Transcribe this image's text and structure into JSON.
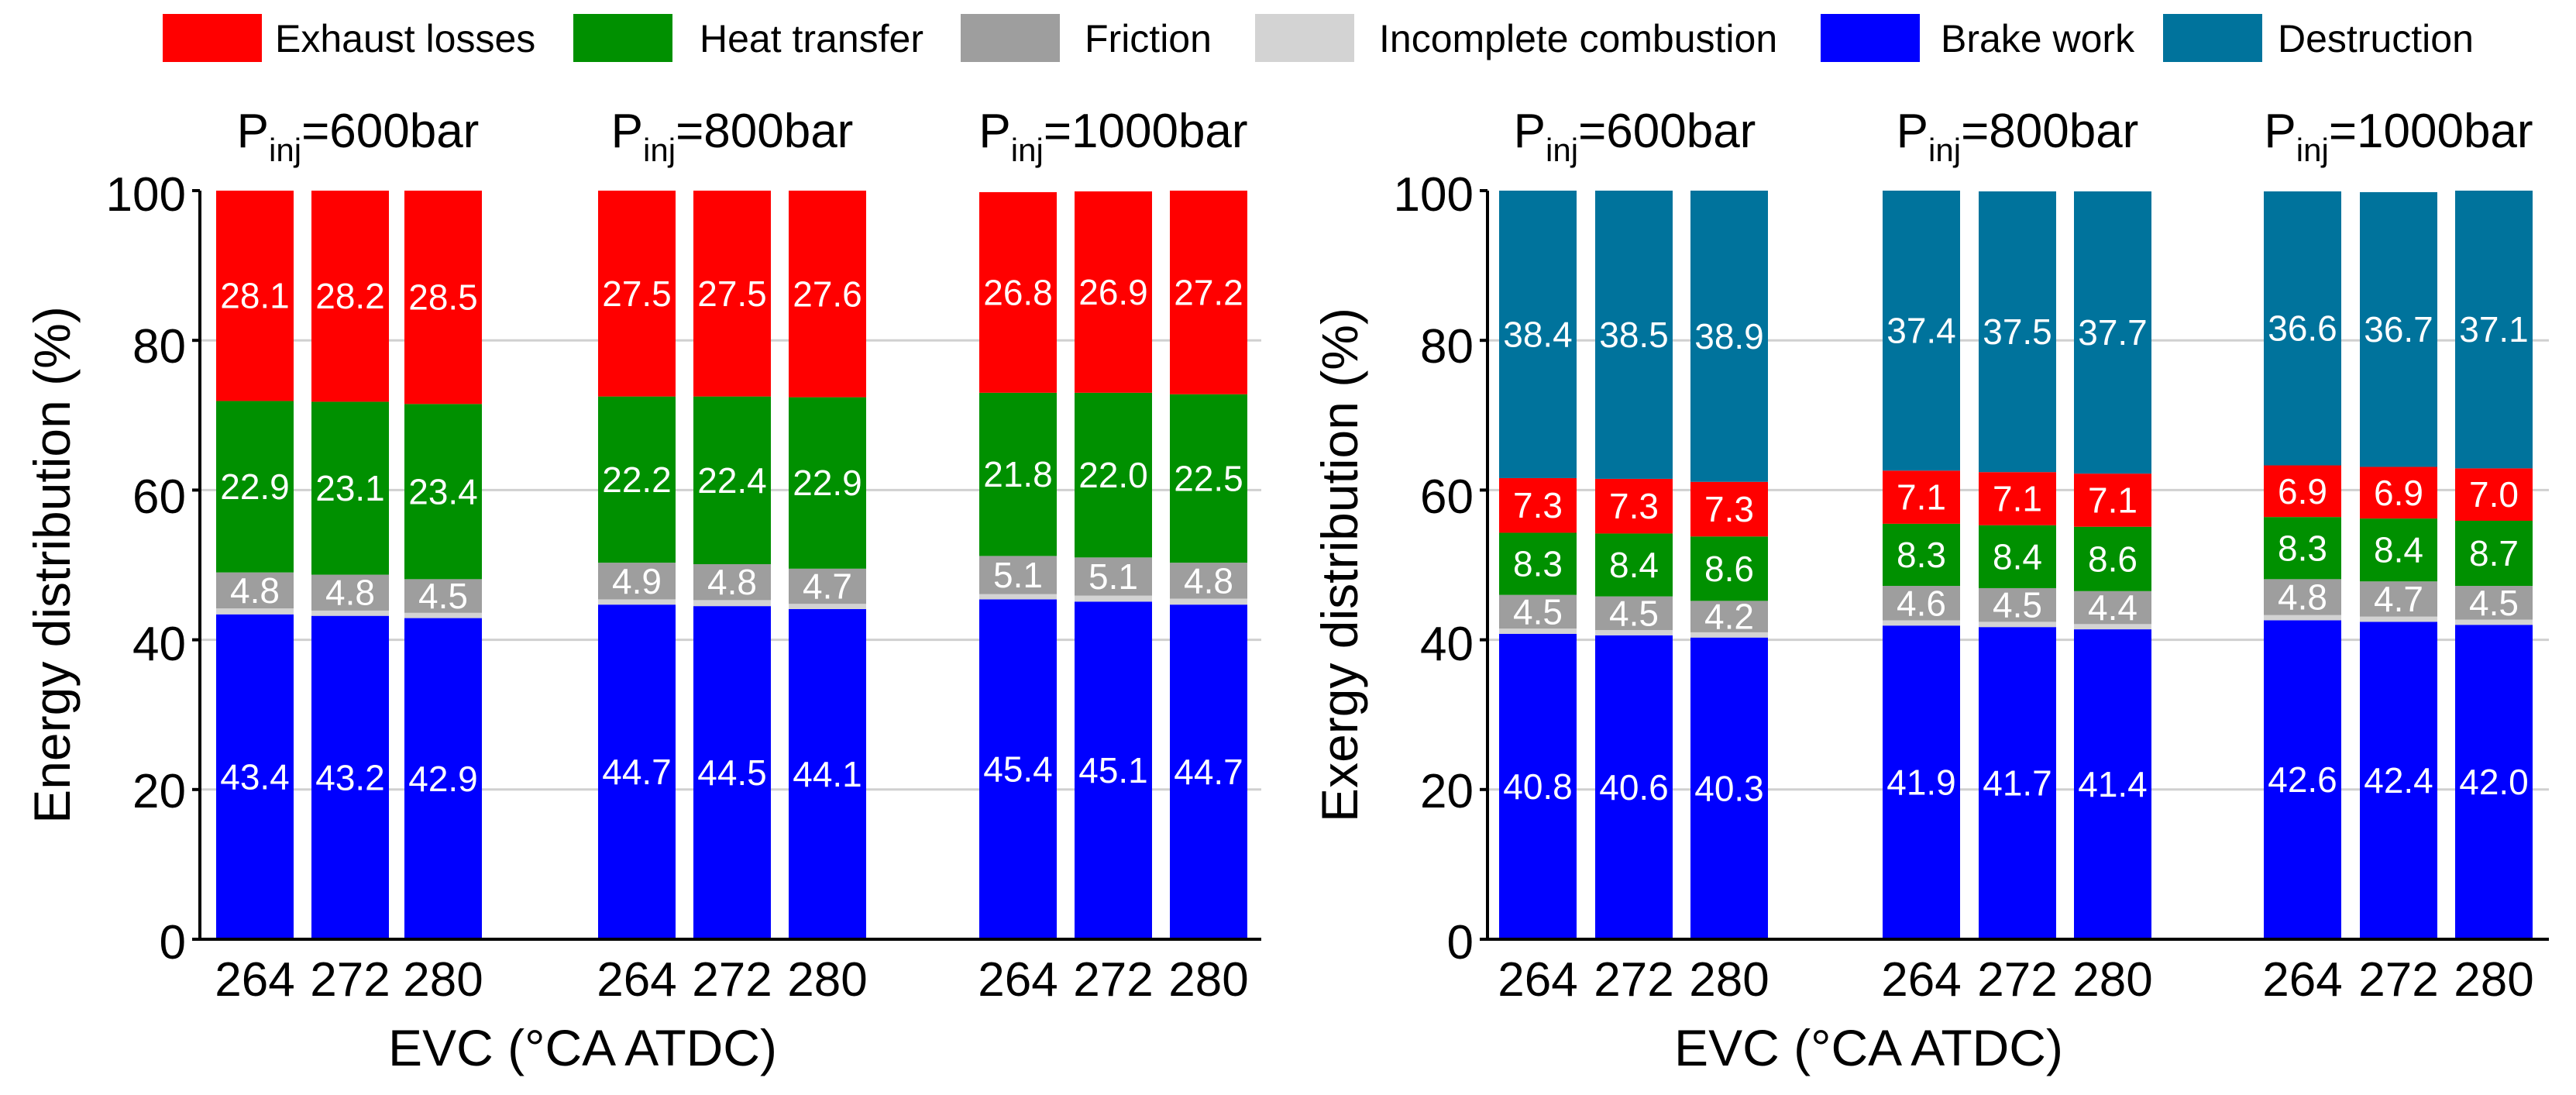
{
  "chart_data": {
    "type": "bar",
    "stacked": true,
    "legend": {
      "placement": "top",
      "items": [
        {
          "name": "Exhaust losses",
          "color": "#ff0000"
        },
        {
          "name": "Heat transfer",
          "color": "#009000"
        },
        {
          "name": "Friction",
          "color": "#9e9e9e"
        },
        {
          "name": "Incomplete combustion",
          "color": "#d3d3d3"
        },
        {
          "name": "Brake work",
          "color": "#0000ff"
        },
        {
          "name": "Destruction",
          "color": "#00739c"
        }
      ]
    },
    "panels": [
      {
        "ylabel": "Energy distribution (%)",
        "xlabel": "EVC (°CA ATDC)",
        "ylim": [
          0,
          100
        ],
        "yticks": [
          "0",
          "20",
          "40",
          "60",
          "80",
          "100"
        ],
        "grid": true,
        "groups": [
          {
            "title_main": "P",
            "title_sub": "inj",
            "title_rest": "=600bar",
            "categories": [
              "264",
              "272",
              "280"
            ]
          },
          {
            "title_main": "P",
            "title_sub": "inj",
            "title_rest": "=800bar",
            "categories": [
              "264",
              "272",
              "280"
            ]
          },
          {
            "title_main": "P",
            "title_sub": "inj",
            "title_rest": "=1000bar",
            "categories": [
              "264",
              "272",
              "280"
            ]
          }
        ],
        "series": [
          {
            "name": "Brake work",
            "color": "#0000ff",
            "values": [
              43.4,
              43.2,
              42.9,
              44.7,
              44.5,
              44.1,
              45.4,
              45.1,
              44.7
            ],
            "labels": [
              "43.4",
              "43.2",
              "42.9",
              "44.7",
              "44.5",
              "44.1",
              "45.4",
              "45.1",
              "44.7"
            ]
          },
          {
            "name": "Incomplete combustion",
            "color": "#d3d3d3",
            "values": [
              0.8,
              0.7,
              0.7,
              0.7,
              0.8,
              0.7,
              0.7,
              0.8,
              0.8
            ],
            "labels": null
          },
          {
            "name": "Friction",
            "color": "#9e9e9e",
            "values": [
              4.8,
              4.8,
              4.5,
              4.9,
              4.8,
              4.7,
              5.1,
              5.1,
              4.8
            ],
            "labels": [
              "4.8",
              "4.8",
              "4.5",
              "4.9",
              "4.8",
              "4.7",
              "5.1",
              "5.1",
              "4.8"
            ]
          },
          {
            "name": "Heat transfer",
            "color": "#009000",
            "values": [
              22.9,
              23.1,
              23.4,
              22.2,
              22.4,
              22.9,
              21.8,
              22.0,
              22.5
            ],
            "labels": [
              "22.9",
              "23.1",
              "23.4",
              "22.2",
              "22.4",
              "22.9",
              "21.8",
              "22.0",
              "22.5"
            ]
          },
          {
            "name": "Exhaust losses",
            "color": "#ff0000",
            "values": [
              28.1,
              28.2,
              28.5,
              27.5,
              27.5,
              27.6,
              26.8,
              26.9,
              27.2
            ],
            "labels": [
              "28.1",
              "28.2",
              "28.5",
              "27.5",
              "27.5",
              "27.6",
              "26.8",
              "26.9",
              "27.2"
            ]
          }
        ]
      },
      {
        "ylabel": "Exergy distribution (%)",
        "xlabel": "EVC (°CA ATDC)",
        "ylim": [
          0,
          100
        ],
        "yticks": [
          "0",
          "20",
          "40",
          "60",
          "80",
          "100"
        ],
        "grid": true,
        "groups": [
          {
            "title_main": "P",
            "title_sub": "inj",
            "title_rest": "=600bar",
            "categories": [
              "264",
              "272",
              "280"
            ]
          },
          {
            "title_main": "P",
            "title_sub": "inj",
            "title_rest": "=800bar",
            "categories": [
              "264",
              "272",
              "280"
            ]
          },
          {
            "title_main": "P",
            "title_sub": "inj",
            "title_rest": "=1000bar",
            "categories": [
              "264",
              "272",
              "280"
            ]
          }
        ],
        "series": [
          {
            "name": "Brake work",
            "color": "#0000ff",
            "values": [
              40.8,
              40.6,
              40.3,
              41.9,
              41.7,
              41.4,
              42.6,
              42.4,
              42.0
            ],
            "labels": [
              "40.8",
              "40.6",
              "40.3",
              "41.9",
              "41.7",
              "41.4",
              "42.6",
              "42.4",
              "42.0"
            ]
          },
          {
            "name": "Incomplete combustion",
            "color": "#d3d3d3",
            "values": [
              0.7,
              0.7,
              0.7,
              0.7,
              0.7,
              0.7,
              0.7,
              0.7,
              0.7
            ],
            "labels": null
          },
          {
            "name": "Friction",
            "color": "#9e9e9e",
            "values": [
              4.5,
              4.5,
              4.2,
              4.6,
              4.5,
              4.4,
              4.8,
              4.7,
              4.5
            ],
            "labels": [
              "4.5",
              "4.5",
              "4.2",
              "4.6",
              "4.5",
              "4.4",
              "4.8",
              "4.7",
              "4.5"
            ]
          },
          {
            "name": "Heat transfer",
            "color": "#009000",
            "values": [
              8.3,
              8.4,
              8.6,
              8.3,
              8.4,
              8.6,
              8.3,
              8.4,
              8.7
            ],
            "labels": [
              "8.3",
              "8.4",
              "8.6",
              "8.3",
              "8.4",
              "8.6",
              "8.3",
              "8.4",
              "8.7"
            ]
          },
          {
            "name": "Exhaust losses",
            "color": "#ff0000",
            "values": [
              7.3,
              7.3,
              7.3,
              7.1,
              7.1,
              7.1,
              6.9,
              6.9,
              7.0
            ],
            "labels": [
              "7.3",
              "7.3",
              "7.3",
              "7.1",
              "7.1",
              "7.1",
              "6.9",
              "6.9",
              "7.0"
            ]
          },
          {
            "name": "Destruction",
            "color": "#00739c",
            "values": [
              38.4,
              38.5,
              38.9,
              37.4,
              37.5,
              37.7,
              36.6,
              36.7,
              37.1
            ],
            "labels": [
              "38.4",
              "38.5",
              "38.9",
              "37.4",
              "37.5",
              "37.7",
              "36.6",
              "36.7",
              "37.1"
            ]
          }
        ]
      }
    ]
  }
}
